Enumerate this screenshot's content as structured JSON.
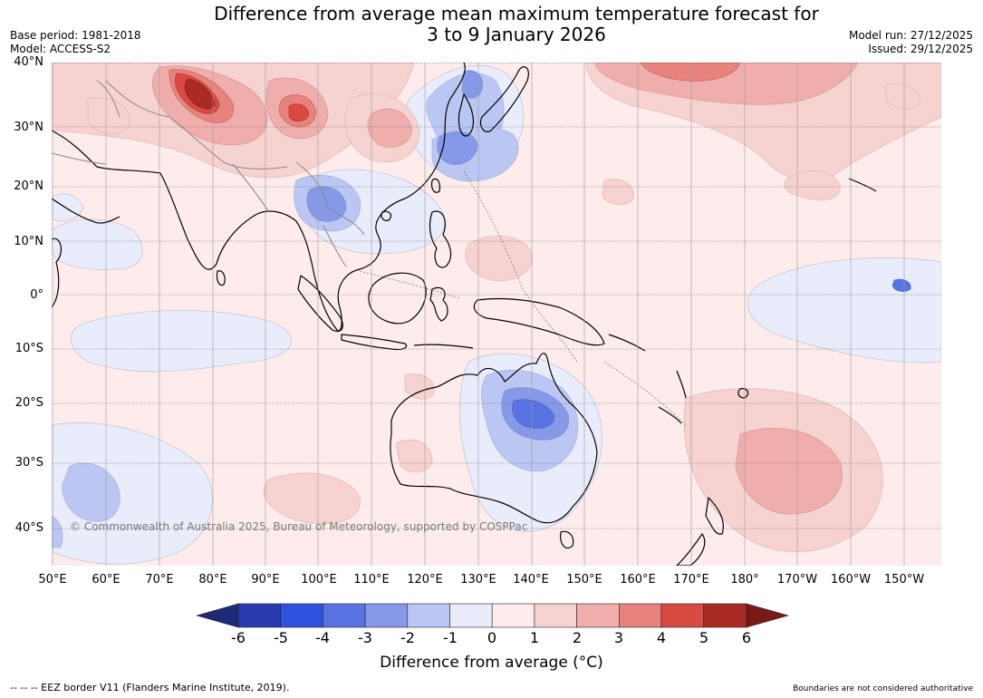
{
  "title": {
    "line1": "Difference from average mean maximum temperature forecast for",
    "line2": "3 to 9 January 2026"
  },
  "meta": {
    "base_period": "Base period: 1981-2018",
    "model": "Model: ACCESS-S2",
    "model_run": "Model run: 27/12/2025",
    "issued": "Issued: 29/12/2025"
  },
  "map": {
    "latitude_labels": [
      "40°N",
      "30°N",
      "20°N",
      "10°N",
      "0°",
      "10°S",
      "20°S",
      "30°S",
      "40°S"
    ],
    "longitude_labels": [
      "50°E",
      "60°E",
      "70°E",
      "80°E",
      "90°E",
      "100°E",
      "110°E",
      "120°E",
      "130°E",
      "140°E",
      "150°E",
      "160°E",
      "170°E",
      "180°",
      "170°W",
      "160°W",
      "150°W"
    ],
    "copyright": "© Commonwealth of Australia 2025, Bureau of Meteorology, supported by COSPPac"
  },
  "colorbar": {
    "tick_labels": [
      "-6",
      "-5",
      "-4",
      "-3",
      "-2",
      "-1",
      "0",
      "1",
      "2",
      "3",
      "4",
      "5",
      "6"
    ],
    "colors": [
      "#1c2a78",
      "#2a3bb0",
      "#2f52de",
      "#5a73e3",
      "#8599e8",
      "#bcc6f2",
      "#e9ecfb",
      "#fdeceb",
      "#f6d2d0",
      "#efaeab",
      "#e7827d",
      "#d94a41",
      "#aa2a26",
      "#7a1a17"
    ],
    "title": "Difference from average (°C)"
  },
  "footer": {
    "eez": "--  --  -- EEZ border V11 (Flanders Marine Institute, 2019).",
    "disclaimer": "Boundaries are not considered authoritative"
  }
}
